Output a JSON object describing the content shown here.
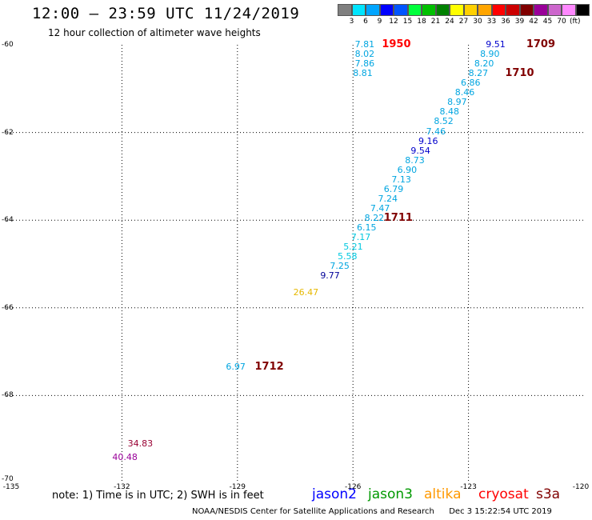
{
  "header": {
    "title": "12:00 – 23:59 UTC 11/24/2019",
    "subtitle": "12 hour collection of altimeter wave heights"
  },
  "colorbar": {
    "colors": [
      "#7f7f7f",
      "#00e5ff",
      "#00a5ff",
      "#0000ff",
      "#0055ff",
      "#00ff3c",
      "#00c000",
      "#008000",
      "#ffff00",
      "#ffd000",
      "#ffa500",
      "#ff0000",
      "#cc0000",
      "#800000",
      "#990099",
      "#cc66cc",
      "#ff88ff",
      "#000000"
    ],
    "labels": [
      "3",
      "6",
      "9",
      "12",
      "15",
      "18",
      "21",
      "24",
      "27",
      "30",
      "33",
      "36",
      "39",
      "42",
      "45",
      "70"
    ],
    "unit": "(ft)"
  },
  "axes": {
    "y_ticks": [
      "-60",
      "-62",
      "-64",
      "-66",
      "-68",
      "-70"
    ],
    "x_ticks": [
      "-135",
      "-132",
      "-129",
      "-126",
      "-123",
      "-120"
    ]
  },
  "map_data": {
    "x_range": [
      -135,
      -120
    ],
    "y_range": [
      -70,
      -60
    ],
    "labels": [
      {
        "text": "7.81",
        "lon": -125.7,
        "lat": -60.0,
        "color": "#00a5e0"
      },
      {
        "text": "8.02",
        "lon": -125.7,
        "lat": -60.22,
        "color": "#00a5e0"
      },
      {
        "text": "7.86",
        "lon": -125.7,
        "lat": -60.44,
        "color": "#00a5e0"
      },
      {
        "text": "8.81",
        "lon": -125.75,
        "lat": -60.66,
        "color": "#00a5e0"
      },
      {
        "text": "9.51",
        "lon": -122.3,
        "lat": -60.0,
        "color": "#0000cc"
      },
      {
        "text": "8.90",
        "lon": -122.45,
        "lat": -60.22,
        "color": "#00a5e0"
      },
      {
        "text": "8.20",
        "lon": -122.6,
        "lat": -60.44,
        "color": "#00a5e0"
      },
      {
        "text": "8.27",
        "lon": -122.75,
        "lat": -60.66,
        "color": "#00a5e0"
      },
      {
        "text": "6.86",
        "lon": -122.95,
        "lat": -60.88,
        "color": "#00a5e0"
      },
      {
        "text": "8.46",
        "lon": -123.1,
        "lat": -61.1,
        "color": "#00a5e0"
      },
      {
        "text": "8.97",
        "lon": -123.3,
        "lat": -61.32,
        "color": "#00a5e0"
      },
      {
        "text": "8.48",
        "lon": -123.5,
        "lat": -61.54,
        "color": "#00a5e0"
      },
      {
        "text": "8.52",
        "lon": -123.65,
        "lat": -61.76,
        "color": "#00a5e0"
      },
      {
        "text": "7.46",
        "lon": -123.85,
        "lat": -61.98,
        "color": "#00a5e0"
      },
      {
        "text": "9.16",
        "lon": -124.05,
        "lat": -62.2,
        "color": "#0000cc"
      },
      {
        "text": "9.54",
        "lon": -124.25,
        "lat": -62.42,
        "color": "#0000cc"
      },
      {
        "text": "8.73",
        "lon": -124.4,
        "lat": -62.64,
        "color": "#00a5e0"
      },
      {
        "text": "6.90",
        "lon": -124.6,
        "lat": -62.86,
        "color": "#00a5e0"
      },
      {
        "text": "7.13",
        "lon": -124.75,
        "lat": -63.08,
        "color": "#00a5e0"
      },
      {
        "text": "6.79",
        "lon": -124.95,
        "lat": -63.3,
        "color": "#00a5e0"
      },
      {
        "text": "7.24",
        "lon": -125.1,
        "lat": -63.52,
        "color": "#00a5e0"
      },
      {
        "text": "7.47",
        "lon": -125.3,
        "lat": -63.74,
        "color": "#00a5e0"
      },
      {
        "text": "8.22",
        "lon": -125.45,
        "lat": -63.96,
        "color": "#00a5e0"
      },
      {
        "text": "6.15",
        "lon": -125.65,
        "lat": -64.18,
        "color": "#00a5e0"
      },
      {
        "text": "7.17",
        "lon": -125.8,
        "lat": -64.4,
        "color": "#00c8e0"
      },
      {
        "text": "5.21",
        "lon": -126.0,
        "lat": -64.62,
        "color": "#00c8e0"
      },
      {
        "text": "5.58",
        "lon": -126.15,
        "lat": -64.84,
        "color": "#00c8e0"
      },
      {
        "text": "7.25",
        "lon": -126.35,
        "lat": -65.06,
        "color": "#00a5e0"
      },
      {
        "text": "9.77",
        "lon": -126.6,
        "lat": -65.28,
        "color": "#000099"
      },
      {
        "text": "26.47",
        "lon": -127.3,
        "lat": -65.66,
        "color": "#e6b800"
      },
      {
        "text": "6.97",
        "lon": -129.05,
        "lat": -67.35,
        "color": "#00a5e0"
      },
      {
        "text": "34.83",
        "lon": -131.6,
        "lat": -69.1,
        "color": "#990033"
      },
      {
        "text": "40.48",
        "lon": -132.0,
        "lat": -69.42,
        "color": "#990099"
      }
    ],
    "times": [
      {
        "text": "1950",
        "lon": -125.0,
        "lat": -60.0,
        "color": "#ff0000"
      },
      {
        "text": "1709",
        "lon": -121.25,
        "lat": -60.0,
        "color": "#800000"
      },
      {
        "text": "1710",
        "lon": -121.8,
        "lat": -60.66,
        "color": "#800000"
      },
      {
        "text": "1711",
        "lon": -124.95,
        "lat": -63.96,
        "color": "#800000"
      },
      {
        "text": "1712",
        "lon": -128.3,
        "lat": -67.35,
        "color": "#800000"
      }
    ]
  },
  "note": "note: 1) Time is in UTC; 2) SWH is in feet",
  "legend": [
    {
      "label": "jason2",
      "color": "#0000ff"
    },
    {
      "label": "jason3",
      "color": "#009900"
    },
    {
      "label": "altika",
      "color": "#ff9900"
    },
    {
      "label": "cryosat",
      "color": "#ff0000"
    },
    {
      "label": "s3a",
      "color": "#800000"
    }
  ],
  "footer": {
    "org": "NOAA/NESDIS Center for Satellite Applications and Research",
    "timestamp": "Dec  3 15:22:54 UTC 2019"
  }
}
